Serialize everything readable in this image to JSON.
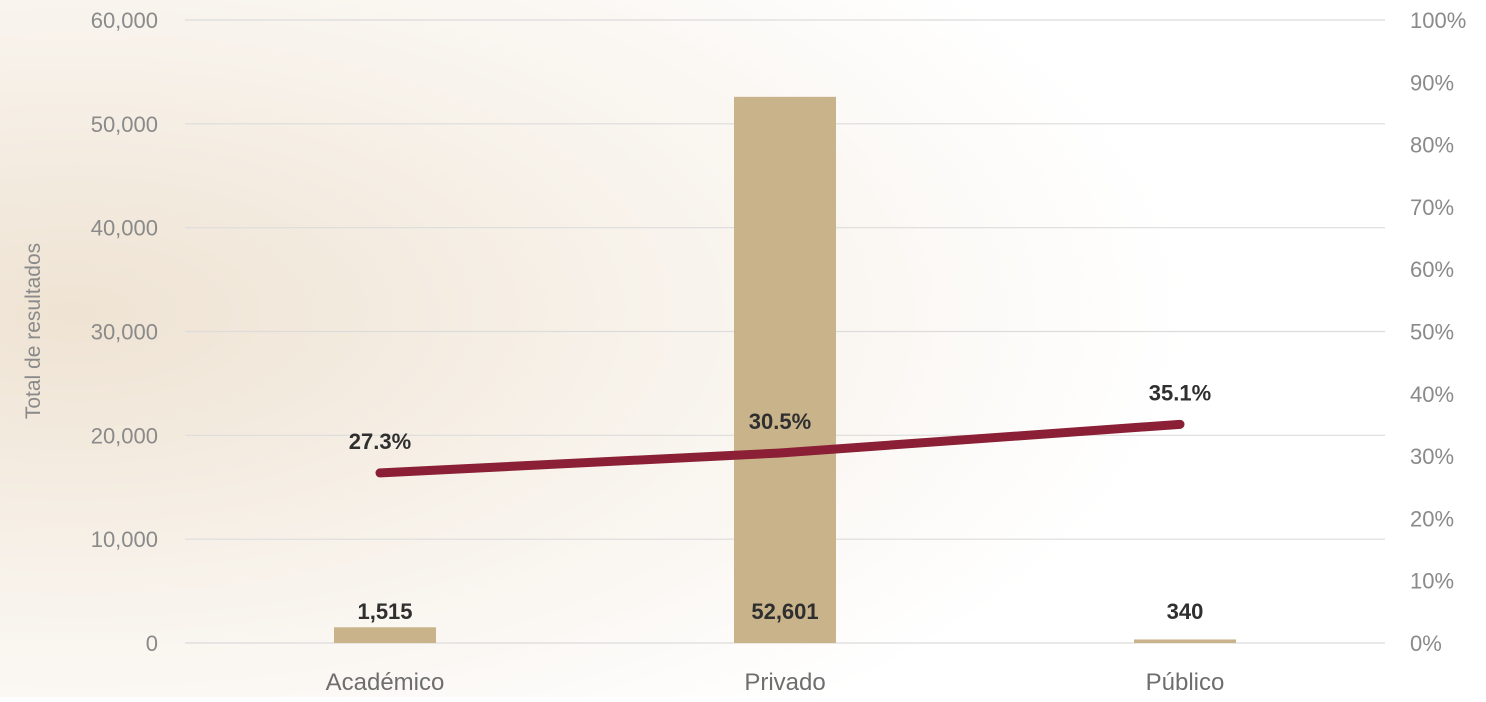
{
  "chart_data": {
    "type": "bar",
    "categories": [
      "Académico",
      "Privado",
      "Público"
    ],
    "series": [
      {
        "type": "bar",
        "axis": "left",
        "values": [
          1515,
          52601,
          340
        ],
        "value_labels": [
          "1,515",
          "52,601",
          "340"
        ],
        "color": "#c9b38a"
      },
      {
        "type": "line",
        "axis": "right",
        "values": [
          27.3,
          30.5,
          35.1
        ],
        "value_labels": [
          "27.3%",
          "30.5%",
          "35.1%"
        ],
        "color": "#8a1f35"
      }
    ],
    "ylabel": "Total de resultados",
    "ylim": [
      0,
      60000
    ],
    "y2lim": [
      0,
      100
    ],
    "yticks": [
      "0",
      "10,000",
      "20,000",
      "30,000",
      "40,000",
      "50,000",
      "60,000"
    ],
    "y2ticks": [
      "0%",
      "10%",
      "20%",
      "30%",
      "40%",
      "50%",
      "60%",
      "70%",
      "80%",
      "90%",
      "100%"
    ],
    "grid": true,
    "legend": "none"
  }
}
